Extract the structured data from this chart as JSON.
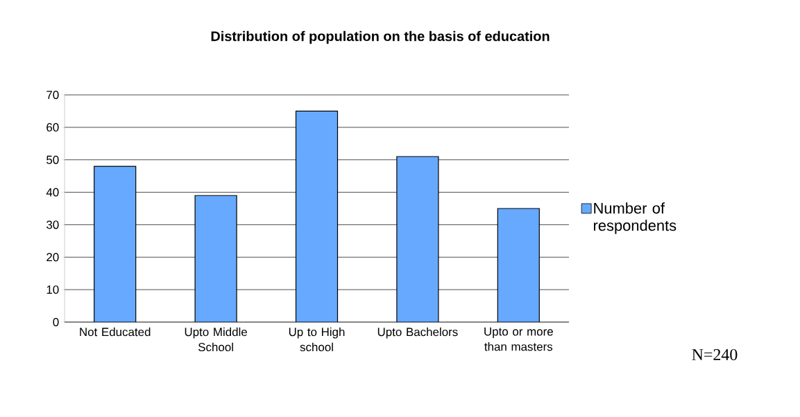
{
  "chart_data": {
    "type": "bar",
    "title": "Distribution of population on the basis of education",
    "categories": [
      "Not Educated",
      "Upto Middle School",
      "Up to High school",
      "Upto Bachelors",
      "Upto or more than masters"
    ],
    "series": [
      {
        "name": "Number of respondents",
        "color": "#66a9ff",
        "values": [
          48,
          39,
          65,
          51,
          35
        ]
      }
    ],
    "ylim": [
      0,
      70
    ],
    "yticks": [
      0,
      10,
      20,
      30,
      40,
      50,
      60,
      70
    ],
    "grid": "y",
    "legend": "right",
    "annotations": [
      "N=240"
    ]
  }
}
